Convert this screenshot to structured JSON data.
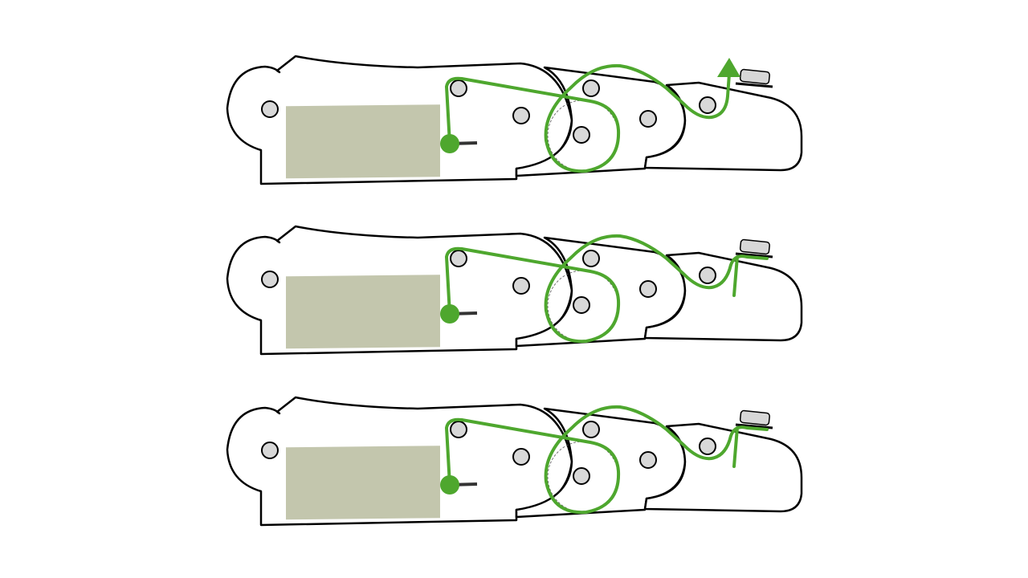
{
  "colors": {
    "tendon": "#4ea72e",
    "pad": "#c3c6ad",
    "outline": "#000000",
    "pin": "#d8d8d8"
  },
  "icons": {
    "anchor": "anchor-dot-icon",
    "pin": "joint-pin-icon",
    "arrow": "arrow-head-icon",
    "tip": "fingertip-block-icon"
  },
  "panels": [
    {
      "name": "finger-panel-extended",
      "tendon_end": "arrow"
    },
    {
      "name": "finger-panel-hooked",
      "tendon_end": "hook"
    },
    {
      "name": "finger-panel-hooked-pressed",
      "tendon_end": "hook"
    }
  ]
}
